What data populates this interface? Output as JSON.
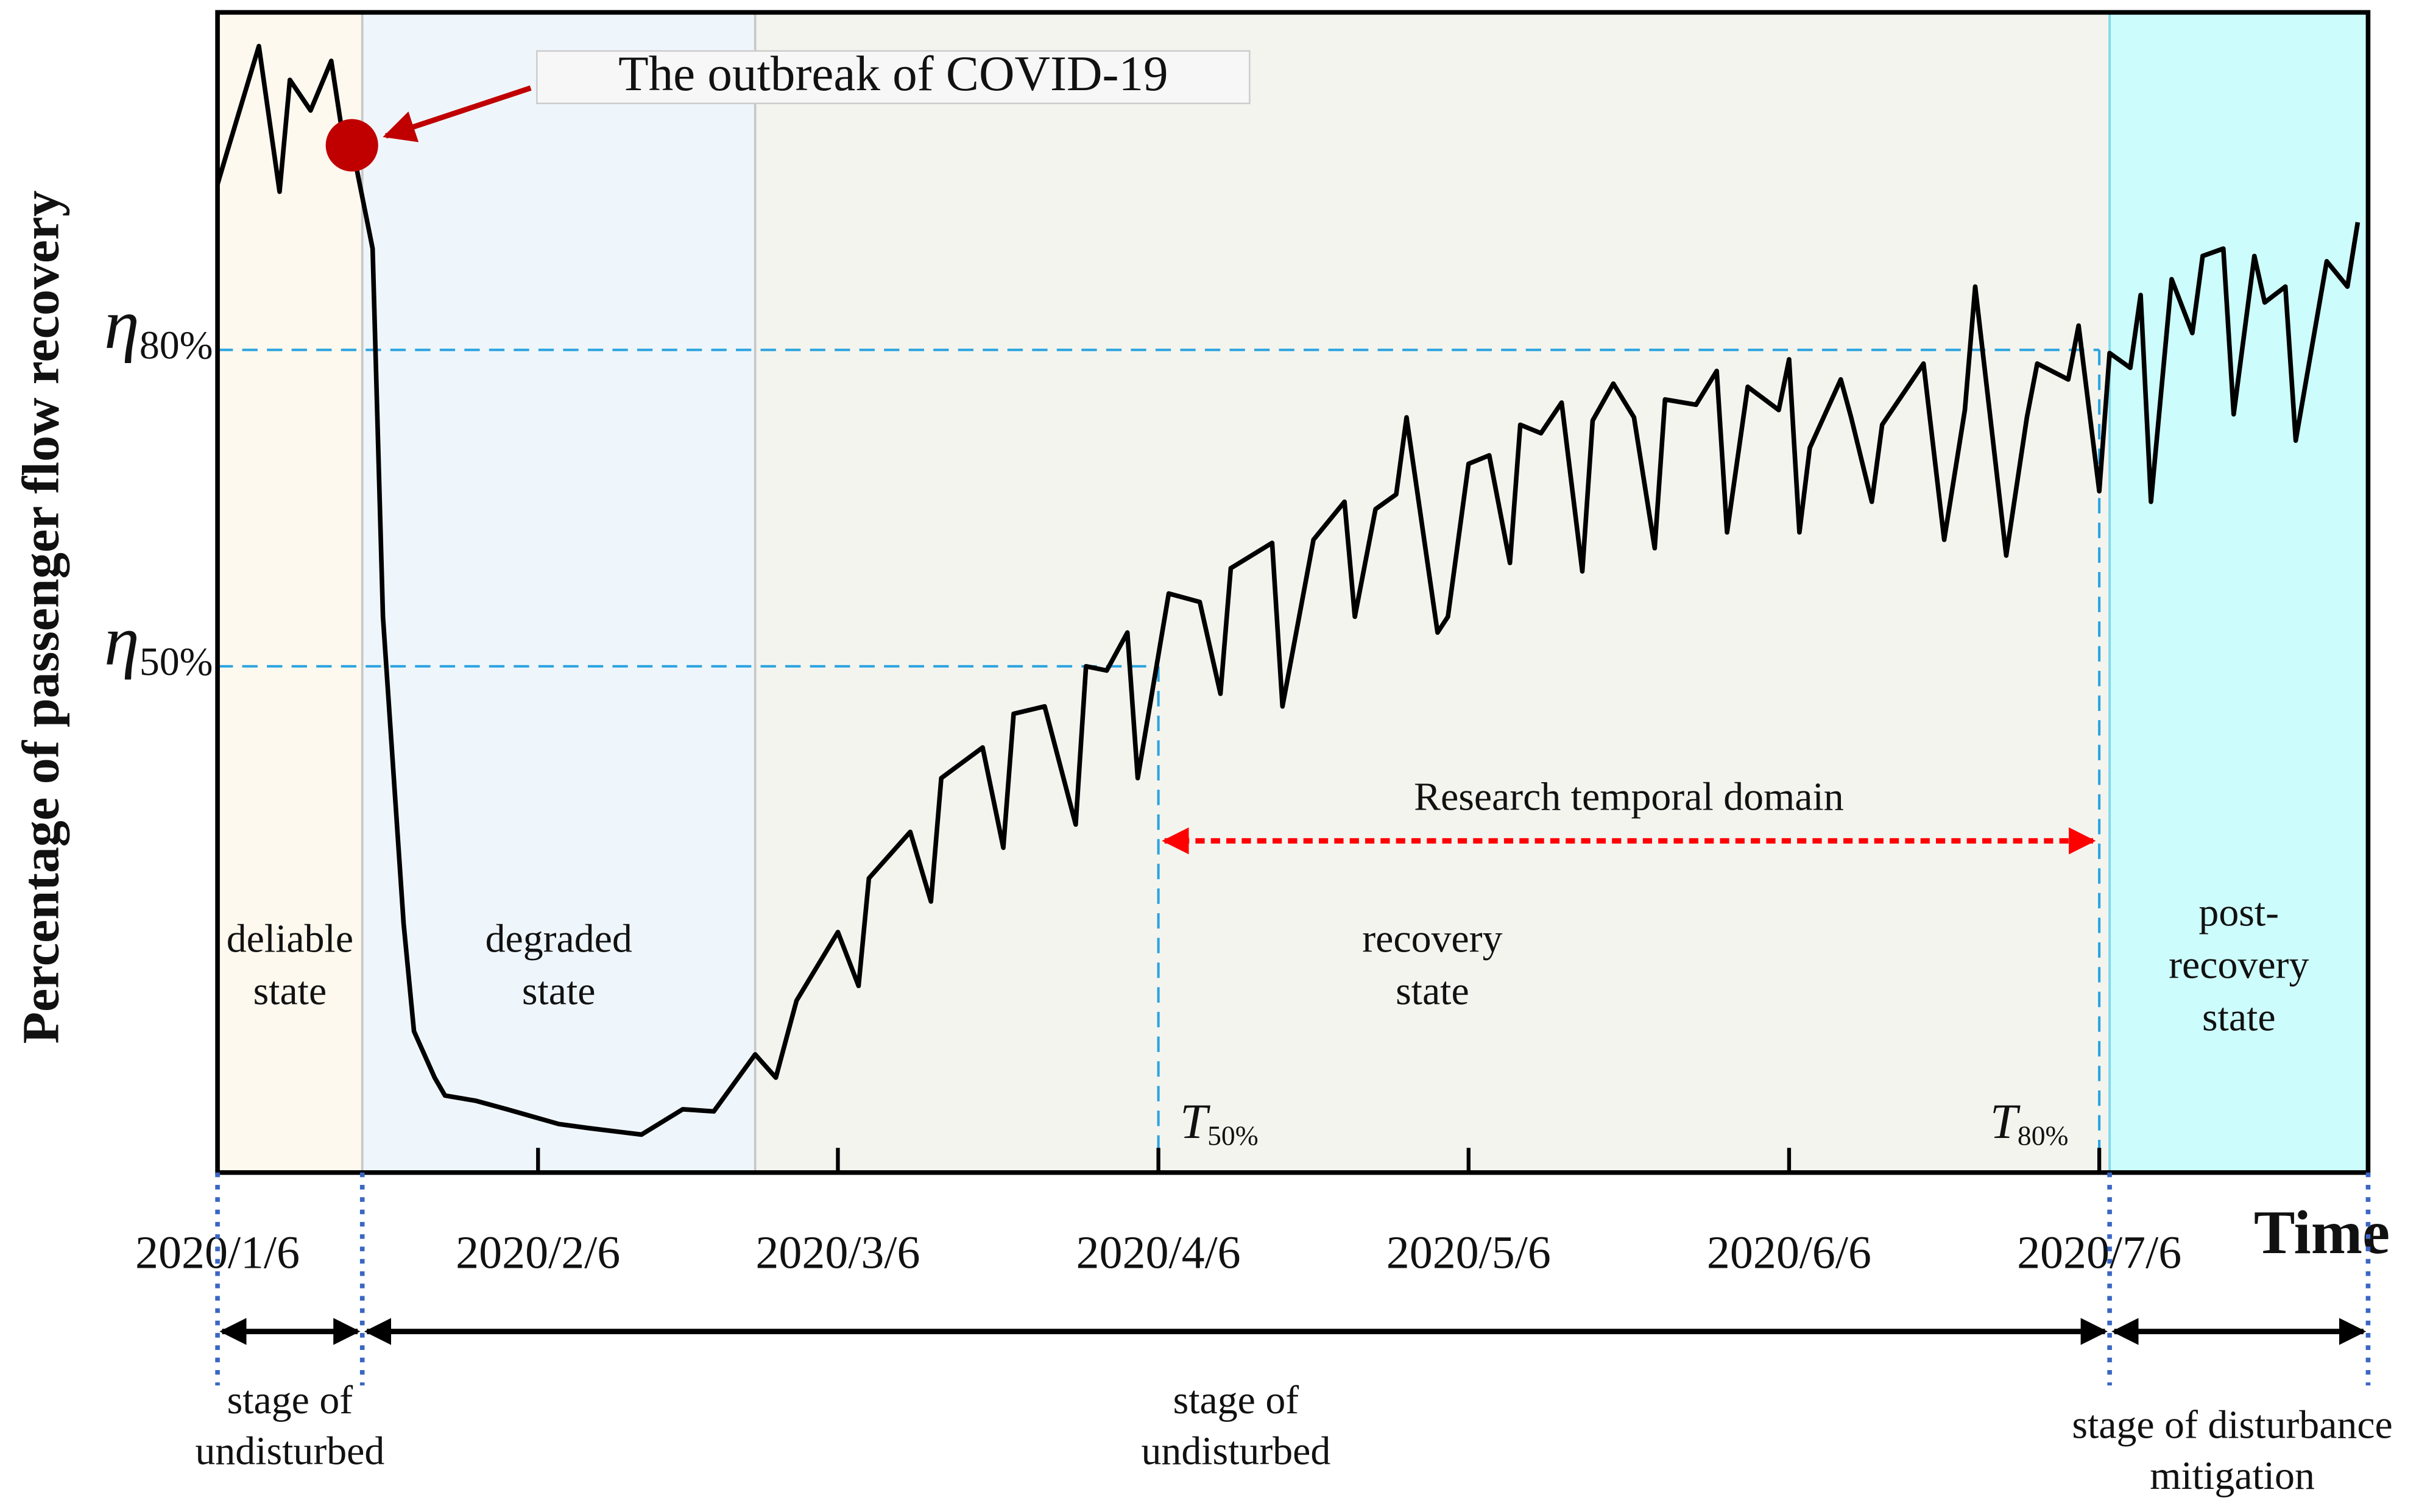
{
  "chart_data": {
    "type": "line",
    "y_label": "Percentage of passenger flow recovery",
    "x_label": "Time",
    "xlim": [
      "2020/1/6",
      "2020/8/1"
    ],
    "xticks": [
      "2020/1/6",
      "2020/2/6",
      "2020/3/6",
      "2020/4/6",
      "2020/5/6",
      "2020/6/6",
      "2020/7/6"
    ],
    "ylim": [
      2,
      112
    ],
    "yticks": [
      {
        "value": 50,
        "label": "η50%"
      },
      {
        "value": 80,
        "label": "η80%"
      }
    ],
    "x": [
      "2020/1/6",
      "2020/1/7",
      "2020/1/10",
      "2020/1/12",
      "2020/1/13",
      "2020/1/15",
      "2020/1/17",
      "2020/1/18",
      "2020/1/19",
      "2020/1/21",
      "2020/1/22",
      "2020/1/24",
      "2020/1/25",
      "2020/1/27",
      "2020/1/28",
      "2020/1/31",
      "2020/2/3",
      "2020/2/8",
      "2020/2/11",
      "2020/2/16",
      "2020/2/20",
      "2020/2/23",
      "2020/2/27",
      "2020/2/29",
      "2020/3/2",
      "2020/3/6",
      "2020/3/8",
      "2020/3/9",
      "2020/3/13",
      "2020/3/15",
      "2020/3/16",
      "2020/3/20",
      "2020/3/22",
      "2020/3/23",
      "2020/3/26",
      "2020/3/29",
      "2020/3/30",
      "2020/4/1",
      "2020/4/3",
      "2020/4/4",
      "2020/4/7",
      "2020/4/10",
      "2020/4/12",
      "2020/4/13",
      "2020/4/17",
      "2020/4/18",
      "2020/4/21",
      "2020/4/24",
      "2020/4/25",
      "2020/4/27",
      "2020/4/29",
      "2020/4/30",
      "2020/5/3",
      "2020/5/4",
      "2020/5/6",
      "2020/5/8",
      "2020/5/10",
      "2020/5/11",
      "2020/5/13",
      "2020/5/15",
      "2020/5/17",
      "2020/5/18",
      "2020/5/20",
      "2020/5/22",
      "2020/5/24",
      "2020/5/25",
      "2020/5/28",
      "2020/5/30",
      "2020/5/31",
      "2020/6/2",
      "2020/6/5",
      "2020/6/6",
      "2020/6/7",
      "2020/6/8",
      "2020/6/11",
      "2020/6/12",
      "2020/6/14",
      "2020/6/15",
      "2020/6/19",
      "2020/6/21",
      "2020/6/23",
      "2020/6/24",
      "2020/6/27",
      "2020/6/29",
      "2020/6/30",
      "2020/7/3",
      "2020/7/4",
      "2020/7/6",
      "2020/7/7",
      "2020/7/9",
      "2020/7/10",
      "2020/7/11",
      "2020/7/13",
      "2020/7/15",
      "2020/7/16",
      "2020/7/18",
      "2020/7/19",
      "2020/7/21",
      "2020/7/22",
      "2020/7/24",
      "2020/7/25",
      "2020/7/28",
      "2020/7/30",
      "2020/7/31"
    ],
    "series": [
      {
        "color": "#000000",
        "values": [
          95.7,
          99,
          108.8,
          95,
          105.6,
          102.7,
          107.4,
          101,
          99.4,
          89.6,
          54.7,
          25.6,
          15.4,
          11,
          9.3,
          8.8,
          8,
          6.6,
          6.2,
          5.6,
          8,
          7.8,
          13.2,
          11,
          18.3,
          24.8,
          19.7,
          29.9,
          34.3,
          27.7,
          39.4,
          42.3,
          32.8,
          45.5,
          46.2,
          35,
          50,
          49.6,
          53.2,
          39.4,
          56.9,
          56.1,
          47.4,
          59.3,
          61.7,
          46.2,
          62,
          65.6,
          54.7,
          64.9,
          66.3,
          73.6,
          53.2,
          54.7,
          69.2,
          70,
          59.8,
          72.9,
          72.1,
          75,
          59,
          73.3,
          76.8,
          73.6,
          61.2,
          75.3,
          74.8,
          78,
          62.7,
          76.5,
          74.3,
          79.1,
          62.7,
          70.7,
          77.2,
          73.6,
          65.6,
          72.9,
          78.7,
          62,
          74.3,
          86,
          60.5,
          73.6,
          78.7,
          77.2,
          82.3,
          66.6,
          79.7,
          78.3,
          85.2,
          65.6,
          86.7,
          81.6,
          88.9,
          89.6,
          73.9,
          88.9,
          84.5,
          86,
          71.4,
          88.4,
          86,
          92.1
        ]
      }
    ],
    "regions": [
      {
        "start": "2020/1/6",
        "end": "2020/1/20",
        "color": "#fdf9ef",
        "label": [
          "deliable",
          "state"
        ]
      },
      {
        "start": "2020/1/20",
        "end": "2020/2/27",
        "color": "#eff6fb",
        "label": [
          "degraded",
          "state"
        ]
      },
      {
        "start": "2020/2/27",
        "end": "2020/7/7",
        "color": "#f4f4ef",
        "label": [
          "recovery",
          "state"
        ]
      },
      {
        "start": "2020/7/7",
        "end": "2020/8/1",
        "color": "#cdfcfc",
        "label": [
          "post-",
          "recovery",
          "state"
        ]
      }
    ],
    "markers": [
      {
        "date": "2020/4/6",
        "label": "T50%"
      },
      {
        "date": "2020/7/6",
        "label": "T80%"
      }
    ],
    "outbreak": {
      "date": "2020/1/19",
      "text": "The outbreak of COVID-19",
      "color": "#c00000"
    },
    "domain": {
      "text": "Research temporal domain",
      "color": "#ff0000"
    },
    "stages": [
      {
        "start": "2020/1/6",
        "end": "2020/1/20",
        "label": [
          "stage of",
          "undisturbed"
        ]
      },
      {
        "start": "2020/1/20",
        "end": "2020/7/7",
        "label": [
          "stage of",
          "undisturbed"
        ]
      },
      {
        "start": "2020/7/7",
        "end": "2020/8/1",
        "label": [
          "stage of disturbance",
          "mitigation"
        ]
      }
    ],
    "reference_line_color": "#29a3e0"
  }
}
